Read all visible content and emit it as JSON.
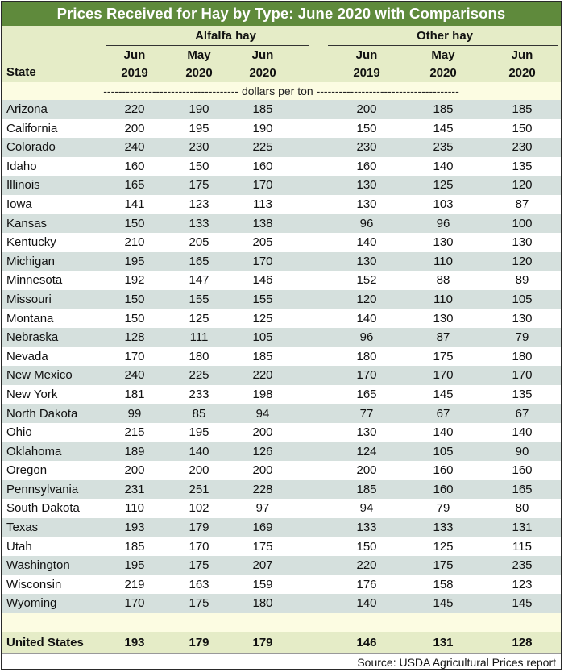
{
  "title": "Prices Received for Hay by Type: June 2020 with Comparisons",
  "header": {
    "state_label": "State",
    "group_alfalfa": "Alfalfa hay",
    "group_other": "Other hay",
    "columns": [
      {
        "month": "Jun",
        "year": "2019"
      },
      {
        "month": "May",
        "year": "2020"
      },
      {
        "month": "Jun",
        "year": "2020"
      },
      {
        "month": "Jun",
        "year": "2019"
      },
      {
        "month": "May",
        "year": "2020"
      },
      {
        "month": "Jun",
        "year": "2020"
      }
    ]
  },
  "units": "------------------------------------ dollars per ton --------------------------------------",
  "footer": {
    "total_label": "United States",
    "source": "Source: USDA Agricultural Prices report"
  },
  "chart_data": {
    "type": "table",
    "title": "Prices Received for Hay by Type: June 2020 with Comparisons",
    "units": "dollars per ton",
    "columns": [
      "State",
      "Alfalfa hay Jun 2019",
      "Alfalfa hay May 2020",
      "Alfalfa hay Jun 2020",
      "Other hay Jun 2019",
      "Other hay May 2020",
      "Other hay Jun 2020"
    ],
    "rows": [
      {
        "state": "Arizona",
        "values": [
          "220",
          "190",
          "185",
          "200",
          "185",
          "185"
        ]
      },
      {
        "state": "California",
        "values": [
          "200",
          "195",
          "190",
          "150",
          "145",
          "150"
        ]
      },
      {
        "state": "Colorado",
        "values": [
          "240",
          "230",
          "225",
          "230",
          "235",
          "230"
        ]
      },
      {
        "state": "Idaho",
        "values": [
          "160",
          "150",
          "160",
          "160",
          "140",
          "135"
        ]
      },
      {
        "state": "Illinois",
        "values": [
          "165",
          "175",
          "170",
          "130",
          "125",
          "120"
        ]
      },
      {
        "state": "Iowa",
        "values": [
          "141",
          "123",
          "113",
          "130",
          "103",
          "87"
        ]
      },
      {
        "state": "Kansas",
        "values": [
          "150",
          "133",
          "138",
          "96",
          "96",
          "100"
        ]
      },
      {
        "state": "Kentucky",
        "values": [
          "210",
          "205",
          "205",
          "140",
          "130",
          "130"
        ]
      },
      {
        "state": "Michigan",
        "values": [
          "195",
          "165",
          "170",
          "130",
          "110",
          "120"
        ]
      },
      {
        "state": "Minnesota",
        "values": [
          "192",
          "147",
          "146",
          "152",
          "88",
          "89"
        ]
      },
      {
        "state": "Missouri",
        "values": [
          "150",
          "155",
          "155",
          "120",
          "110",
          "105"
        ]
      },
      {
        "state": "Montana",
        "values": [
          "150",
          "125",
          "125",
          "140",
          "130",
          "130"
        ]
      },
      {
        "state": "Nebraska",
        "values": [
          "128",
          "111",
          "105",
          "96",
          "87",
          "79"
        ]
      },
      {
        "state": "Nevada",
        "values": [
          "170",
          "180",
          "185",
          "180",
          "175",
          "180"
        ]
      },
      {
        "state": "New Mexico",
        "values": [
          "240",
          "225",
          "220",
          "170",
          "170",
          "170"
        ]
      },
      {
        "state": "New York",
        "values": [
          "181",
          "233",
          "198",
          "165",
          "145",
          "135"
        ]
      },
      {
        "state": "North Dakota",
        "values": [
          "99",
          "85",
          "94",
          "77",
          "67",
          "67"
        ]
      },
      {
        "state": "Ohio",
        "values": [
          "215",
          "195",
          "200",
          "130",
          "140",
          "140"
        ]
      },
      {
        "state": "Oklahoma",
        "values": [
          "189",
          "140",
          "126",
          "124",
          "105",
          "90"
        ]
      },
      {
        "state": "Oregon",
        "values": [
          "200",
          "200",
          "200",
          "200",
          "160",
          "160"
        ]
      },
      {
        "state": "Pennsylvania",
        "values": [
          "231",
          "251",
          "228",
          "185",
          "160",
          "165"
        ]
      },
      {
        "state": "South Dakota",
        "values": [
          "110",
          "102",
          "97",
          "94",
          "79",
          "80"
        ]
      },
      {
        "state": "Texas",
        "values": [
          "193",
          "179",
          "169",
          "133",
          "133",
          "131"
        ]
      },
      {
        "state": "Utah",
        "values": [
          "185",
          "170",
          "175",
          "150",
          "125",
          "115"
        ]
      },
      {
        "state": "Washington",
        "values": [
          "195",
          "175",
          "207",
          "220",
          "175",
          "235"
        ]
      },
      {
        "state": "Wisconsin",
        "values": [
          "219",
          "163",
          "159",
          "176",
          "158",
          "123"
        ]
      },
      {
        "state": "Wyoming",
        "values": [
          "170",
          "175",
          "180",
          "140",
          "145",
          "145"
        ]
      }
    ],
    "total": {
      "state": "United States",
      "values": [
        "193",
        "179",
        "179",
        "146",
        "131",
        "128"
      ]
    }
  }
}
